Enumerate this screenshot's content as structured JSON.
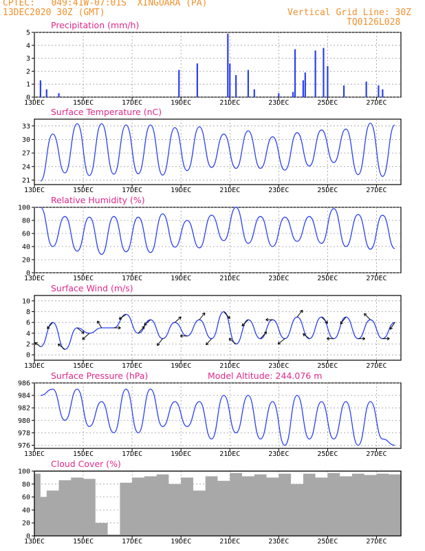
{
  "header": {
    "line1": "CPTEC:   049:41W-07:01S  XINGUARA (PA)",
    "line2": "13DEC2020 30Z (GMT)",
    "grid_note": "Vertical Grid Line: 30Z",
    "code": "TQ0126L028"
  },
  "colors": {
    "header": "#f0902c",
    "title": "#e0288a",
    "series": "#2a3ff0",
    "cloud": "#a8a8a8",
    "grid": "#999999"
  },
  "x_ticks": [
    "13DEC",
    "15DEC",
    "17DEC",
    "19DEC",
    "21DEC",
    "23DEC",
    "25DEC",
    "27DEC"
  ],
  "x_start_label": "13DEC",
  "chart_data": [
    {
      "type": "bar",
      "title": "Precipitation (mm/h)",
      "xlabel": "",
      "ylabel": "",
      "x_range": [
        "13DEC",
        "28DEC"
      ],
      "ylim": [
        0,
        5
      ],
      "yticks": [
        "0",
        "1",
        "2",
        "3",
        "4",
        "5"
      ],
      "x": [
        "13DEC 06Z",
        "13DEC 12Z",
        "14DEC 00Z",
        "18DEC 22Z",
        "19DEC 16Z",
        "20DEC 22Z",
        "21DEC 00Z",
        "21DEC 06Z",
        "21DEC 18Z",
        "22DEC 00Z",
        "23DEC 00Z",
        "23DEC 14Z",
        "23DEC 16Z",
        "24DEC 00Z",
        "24DEC 02Z",
        "24DEC 12Z",
        "24DEC 20Z",
        "25DEC 00Z",
        "25DEC 16Z",
        "26DEC 14Z",
        "27DEC 02Z",
        "27DEC 06Z"
      ],
      "values": [
        1.3,
        0.6,
        0.3,
        2.1,
        2.6,
        4.9,
        2.6,
        1.7,
        2.1,
        0.6,
        0.3,
        0.4,
        3.7,
        1.3,
        1.9,
        3.6,
        3.8,
        2.4,
        0.9,
        1.2,
        0.9,
        0.6
      ]
    },
    {
      "type": "line",
      "title": "Surface Temperature (nC)",
      "xlabel": "",
      "ylabel": "",
      "ylim": [
        20,
        34.5
      ],
      "yticks": [
        "21",
        "24",
        "27",
        "30",
        "33"
      ],
      "x": [
        "13DEC 06Z",
        "13DEC 18Z",
        "14DEC 06Z",
        "14DEC 18Z",
        "15DEC 06Z",
        "15DEC 18Z",
        "16DEC 06Z",
        "16DEC 18Z",
        "17DEC 06Z",
        "17DEC 18Z",
        "18DEC 06Z",
        "18DEC 18Z",
        "19DEC 06Z",
        "19DEC 18Z",
        "20DEC 06Z",
        "20DEC 18Z",
        "21DEC 06Z",
        "21DEC 18Z",
        "22DEC 06Z",
        "22DEC 18Z",
        "23DEC 06Z",
        "23DEC 18Z",
        "24DEC 06Z",
        "24DEC 18Z",
        "25DEC 06Z",
        "25DEC 18Z",
        "26DEC 06Z",
        "26DEC 18Z",
        "27DEC 06Z",
        "27DEC 18Z"
      ],
      "values": [
        20.8,
        31.2,
        22.6,
        33.5,
        22.0,
        33.5,
        22.3,
        33.2,
        22.4,
        33.2,
        22.1,
        32.6,
        23.1,
        32.8,
        23.8,
        31.2,
        23.6,
        31.9,
        23.6,
        30.6,
        23.2,
        31.5,
        24.1,
        32.1,
        24.9,
        32.3,
        22.2,
        33.6,
        21.8,
        33.2
      ]
    },
    {
      "type": "line",
      "title": "Relative Humidity (%)",
      "xlabel": "",
      "ylabel": "",
      "ylim": [
        0,
        100
      ],
      "yticks": [
        "0",
        "20",
        "40",
        "60",
        "80",
        "100"
      ],
      "x": [
        "13DEC 06Z",
        "13DEC 18Z",
        "14DEC 06Z",
        "14DEC 18Z",
        "15DEC 06Z",
        "15DEC 18Z",
        "16DEC 06Z",
        "16DEC 18Z",
        "17DEC 06Z",
        "17DEC 18Z",
        "18DEC 06Z",
        "18DEC 18Z",
        "19DEC 06Z",
        "19DEC 18Z",
        "20DEC 06Z",
        "20DEC 18Z",
        "21DEC 06Z",
        "21DEC 18Z",
        "22DEC 06Z",
        "22DEC 18Z",
        "23DEC 06Z",
        "23DEC 18Z",
        "24DEC 06Z",
        "24DEC 18Z",
        "25DEC 06Z",
        "25DEC 18Z",
        "26DEC 06Z",
        "26DEC 18Z",
        "27DEC 06Z",
        "27DEC 18Z"
      ],
      "values": [
        100,
        40,
        86,
        33,
        85,
        28,
        86,
        32,
        85,
        31,
        90,
        39,
        80,
        38,
        88,
        49,
        100,
        45,
        86,
        40,
        85,
        48,
        86,
        45,
        98,
        40,
        89,
        36,
        88,
        37
      ]
    },
    {
      "type": "line",
      "title": "Surface Wind (m/s)",
      "xlabel": "",
      "ylabel": "",
      "ylim": [
        -1,
        11
      ],
      "yticks": [
        "0",
        "2",
        "4",
        "6",
        "8",
        "10"
      ],
      "x": [
        "13DEC 06Z",
        "13DEC 18Z",
        "14DEC 06Z",
        "14DEC 18Z",
        "15DEC 06Z",
        "15DEC 18Z",
        "16DEC 06Z",
        "16DEC 18Z",
        "17DEC 06Z",
        "17DEC 18Z",
        "18DEC 06Z",
        "18DEC 18Z",
        "19DEC 06Z",
        "19DEC 18Z",
        "20DEC 06Z",
        "20DEC 18Z",
        "21DEC 06Z",
        "21DEC 18Z",
        "22DEC 06Z",
        "22DEC 18Z",
        "23DEC 06Z",
        "23DEC 18Z",
        "24DEC 06Z",
        "24DEC 18Z",
        "25DEC 06Z",
        "25DEC 18Z",
        "26DEC 06Z",
        "26DEC 18Z",
        "27DEC 06Z",
        "27DEC 18Z"
      ],
      "values": [
        1.5,
        6,
        1,
        5,
        4,
        5,
        5,
        7.5,
        4,
        6.5,
        3,
        6,
        3.5,
        6.5,
        3,
        8,
        2,
        6.5,
        3,
        6.5,
        3,
        7,
        3,
        7,
        3,
        7,
        3,
        6.5,
        3,
        6
      ]
    },
    {
      "type": "line",
      "title": "Surface Pressure (hPa)",
      "annotation": "Model Altitude: 244.076  m",
      "xlabel": "",
      "ylabel": "",
      "ylim": [
        975.5,
        986
      ],
      "yticks": [
        "976",
        "978",
        "980",
        "982",
        "984",
        "986"
      ],
      "x": [
        "13DEC 06Z",
        "13DEC 18Z",
        "14DEC 06Z",
        "14DEC 18Z",
        "15DEC 06Z",
        "15DEC 18Z",
        "16DEC 06Z",
        "16DEC 18Z",
        "17DEC 06Z",
        "17DEC 18Z",
        "18DEC 06Z",
        "18DEC 18Z",
        "19DEC 06Z",
        "19DEC 18Z",
        "20DEC 06Z",
        "20DEC 18Z",
        "21DEC 06Z",
        "21DEC 18Z",
        "22DEC 06Z",
        "22DEC 18Z",
        "23DEC 06Z",
        "23DEC 18Z",
        "24DEC 06Z",
        "24DEC 18Z",
        "25DEC 06Z",
        "25DEC 18Z",
        "26DEC 06Z",
        "26DEC 18Z",
        "27DEC 06Z",
        "27DEC 18Z"
      ],
      "values": [
        984,
        985,
        980,
        985,
        979,
        983,
        978,
        985,
        978,
        985,
        979,
        983,
        979,
        983,
        977,
        984,
        978,
        984,
        977,
        983,
        976,
        984,
        977,
        983,
        977,
        983,
        976,
        983,
        977,
        976
      ]
    },
    {
      "type": "area",
      "title": "Cloud Cover (%)",
      "xlabel": "",
      "ylabel": "",
      "ylim": [
        0,
        100
      ],
      "yticks": [
        "0",
        "20",
        "40",
        "60",
        "80",
        "100"
      ],
      "x": [
        "13DEC 00Z",
        "13DEC 06Z",
        "13DEC 12Z",
        "14DEC 00Z",
        "14DEC 12Z",
        "15DEC 00Z",
        "15DEC 12Z",
        "16DEC 00Z",
        "16DEC 12Z",
        "17DEC 00Z",
        "17DEC 12Z",
        "18DEC 00Z",
        "18DEC 12Z",
        "19DEC 00Z",
        "19DEC 12Z",
        "20DEC 00Z",
        "20DEC 12Z",
        "21DEC 00Z",
        "21DEC 12Z",
        "22DEC 00Z",
        "22DEC 12Z",
        "23DEC 00Z",
        "23DEC 12Z",
        "24DEC 00Z",
        "24DEC 12Z",
        "25DEC 00Z",
        "25DEC 12Z",
        "26DEC 00Z",
        "26DEC 12Z",
        "27DEC 00Z",
        "27DEC 12Z",
        "28DEC 00Z"
      ],
      "values": [
        96,
        60,
        70,
        86,
        90,
        88,
        20,
        2,
        82,
        90,
        92,
        95,
        80,
        90,
        70,
        92,
        85,
        97,
        92,
        95,
        90,
        96,
        80,
        96,
        90,
        97,
        92,
        96,
        94,
        96,
        95,
        96
      ]
    }
  ]
}
